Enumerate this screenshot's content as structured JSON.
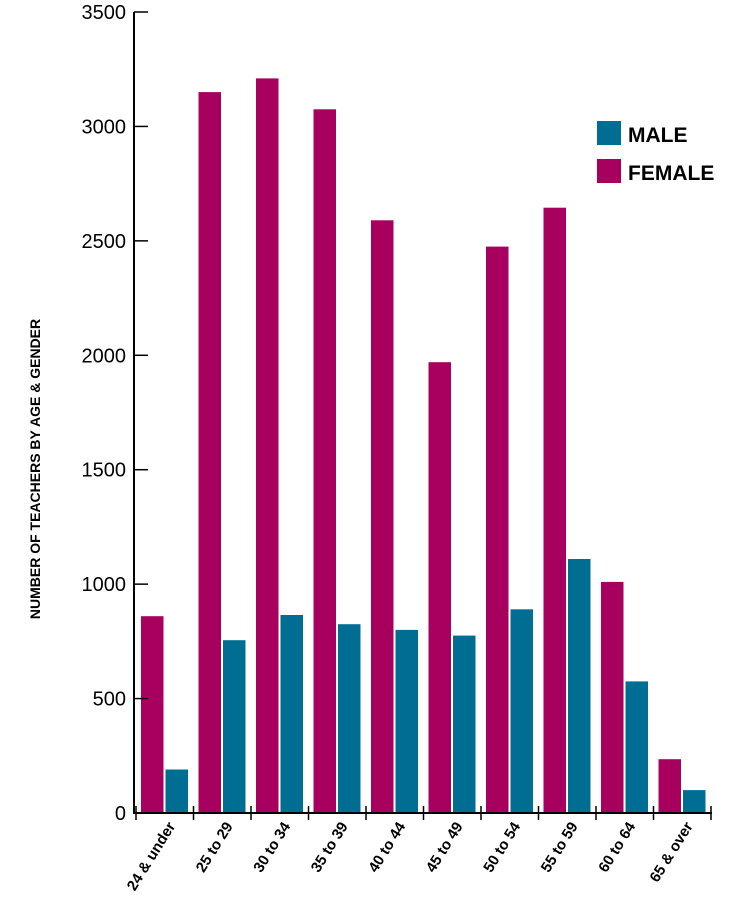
{
  "chart_data": {
    "type": "bar",
    "title": "",
    "xlabel": "",
    "ylabel": "NUMBER OF TEACHERS BY AGE & GENDER",
    "ylim": [
      0,
      3500
    ],
    "yticks": [
      0,
      500,
      1000,
      1500,
      2000,
      2500,
      3000,
      3500
    ],
    "grid": false,
    "legend_position": "top-right",
    "categories": [
      "24 & under",
      "25 to 29",
      "30 to 34",
      "35 to 39",
      "40 to 44",
      "45 to 49",
      "50 to 54",
      "55 to 59",
      "60 to 64",
      "65 & over"
    ],
    "series": [
      {
        "name": "FEMALE",
        "color": "#A8005F",
        "values": [
          860,
          3150,
          3210,
          3075,
          2590,
          1970,
          2475,
          2645,
          1010,
          235
        ]
      },
      {
        "name": "MALE",
        "color": "#006E93",
        "values": [
          190,
          755,
          865,
          825,
          800,
          775,
          890,
          1110,
          575,
          100
        ]
      }
    ],
    "legend": [
      {
        "name": "MALE",
        "color": "#006E93"
      },
      {
        "name": "FEMALE",
        "color": "#A8005F"
      }
    ]
  }
}
